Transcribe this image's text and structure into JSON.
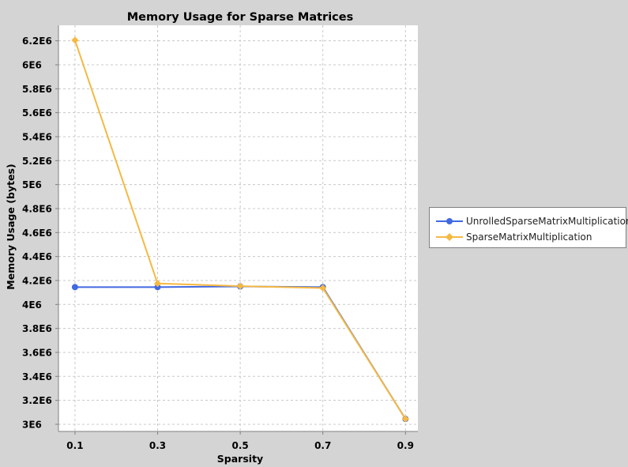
{
  "chart_data": {
    "type": "line",
    "title": "Memory Usage for Sparse Matrices",
    "xlabel": "Sparsity",
    "ylabel": "Memory Usage (bytes)",
    "categories": [
      "0.1",
      "0.3",
      "0.5",
      "0.7",
      "0.9"
    ],
    "x": [
      0.1,
      0.3,
      0.5,
      0.7,
      0.9
    ],
    "xlim": [
      0.06,
      0.93
    ],
    "ylim": [
      2980000,
      6290000
    ],
    "yticks": [
      3000000,
      3200000,
      3400000,
      3600000,
      3800000,
      4000000,
      4200000,
      4400000,
      4600000,
      4800000,
      5000000,
      5200000,
      5400000,
      5600000,
      5800000,
      6000000,
      6200000
    ],
    "ytick_labels": [
      "3E6",
      "3.2E6",
      "3.4E6",
      "3.6E6",
      "3.8E6",
      "4E6",
      "4.2E6",
      "4.4E6",
      "4.6E6",
      "4.8E6",
      "5E6",
      "5.2E6",
      "5.4E6",
      "5.6E6",
      "5.8E6",
      "6E6",
      "6.2E6"
    ],
    "grid": true,
    "legend_position": "right",
    "series": [
      {
        "name": "UnrolledSparseMatrixMultiplication",
        "values": [
          4145000,
          4145000,
          4150000,
          4145000,
          3045000
        ],
        "color": "#4169e1",
        "marker": "circle"
      },
      {
        "name": "SparseMatrixMultiplication",
        "values": [
          6205000,
          4175000,
          4153000,
          4137000,
          3045000
        ],
        "color": "#f5b942",
        "marker": "diamond"
      }
    ]
  },
  "colors": {
    "background": "#d4d4d4",
    "plot_background": "#ffffff",
    "grid": "#c8c8c8"
  }
}
